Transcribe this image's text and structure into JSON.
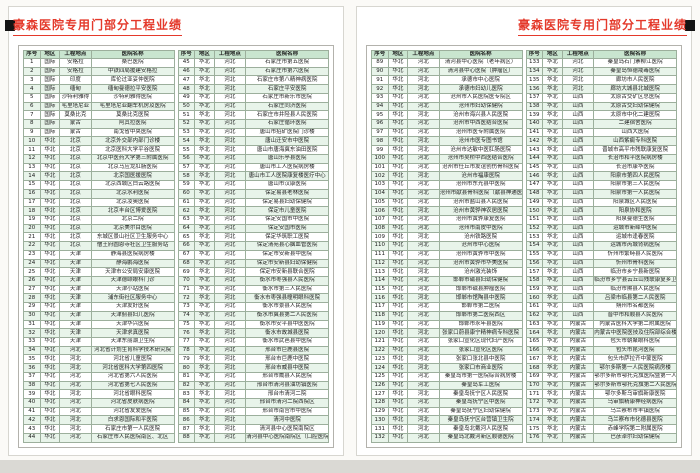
{
  "title": "豪森医院专用门部分工程业绩",
  "accent_color": "#e4392b",
  "header_bg_color": "#c9e5cf",
  "zebra_bg_color": "#e8f4ea",
  "table": {
    "headers": [
      "序号",
      "地区",
      "工程地点",
      "医院名称"
    ],
    "columns": [
      "no",
      "region",
      "location",
      "hospital"
    ],
    "rows": [
      [
        "国际",
        "安格拉",
        "桑巴医院"
      ],
      [
        "国际",
        "安格拉",
        "中铁四局援建安格拉"
      ],
      [
        "国际",
        "印度",
        "库伦过亚妥仲医院"
      ],
      [
        "国际",
        "缅甸",
        "缅甸曼德拉平安医院"
      ],
      [
        "国际",
        "沙特利雅得",
        "沙特利雅得医院"
      ],
      [
        "国际",
        "毛里塔尼亚",
        "毛里塔尼亚翻车机房及医院"
      ],
      [
        "国际",
        "莫桑比克",
        "莫桑比克医院"
      ],
      [
        "国际",
        "蒙古",
        "阿其拉医院"
      ],
      [
        "国际",
        "蒙古",
        "南戈省中央医院"
      ],
      [
        "华北",
        "北京",
        "北京外交部内部门诊楼"
      ],
      [
        "华北",
        "北京",
        "北京医科大学平谷医院"
      ],
      [
        "华北",
        "北京",
        "北京中医药大学第三附属医院"
      ],
      [
        "华北",
        "北京",
        "北京马应龙肛肠医院"
      ],
      [
        "华北",
        "北京",
        "北京国医援医院"
      ],
      [
        "华北",
        "北京",
        "北京西城区白云路医院"
      ],
      [
        "华北",
        "北京",
        "北京水利医院"
      ],
      [
        "华北",
        "北京",
        "北京凌奥医院"
      ],
      [
        "华北",
        "北京",
        "北京丰台区博爱医院"
      ],
      [
        "华北",
        "北京",
        "北京二院"
      ],
      [
        "华北",
        "北京",
        "北京美尔目医院"
      ],
      [
        "华北",
        "北京",
        "东城区景山社区卫生服务中心"
      ],
      [
        "华北",
        "北京",
        "僧王府圆恩寺社区卫生服务站"
      ],
      [
        "华北",
        "天津",
        "静海县医院病房楼"
      ],
      [
        "华北",
        "天津",
        "静海鹏海医院"
      ],
      [
        "华北",
        "天津",
        "天津市公安局安康医院"
      ],
      [
        "华北",
        "天津",
        "天津德颐眼科门诊"
      ],
      [
        "华北",
        "天津",
        "天津小站医院"
      ],
      [
        "华北",
        "天津",
        "浦东街社区服务中心"
      ],
      [
        "华北",
        "天津",
        "天津友好医院"
      ],
      [
        "华北",
        "天津",
        "天津蓟县妇儿医院"
      ],
      [
        "华北",
        "天津",
        "天津华兴医院"
      ],
      [
        "华北",
        "天津",
        "天津求真医院"
      ],
      [
        "华北",
        "天津",
        "天津东丽湖卫生院"
      ],
      [
        "华北",
        "河北",
        "河北省计划生育科学技术研究院"
      ],
      [
        "华北",
        "河北",
        "河北省儿童医院"
      ],
      [
        "华北",
        "河北",
        "河北省医科大学第四医院"
      ],
      [
        "华北",
        "河北",
        "河北省第六人民医院"
      ],
      [
        "华北",
        "河北",
        "河北省第七人民医院"
      ],
      [
        "华北",
        "河北",
        "河北省眼科医院"
      ],
      [
        "华北",
        "河北",
        "河北省皮肤病医院"
      ],
      [
        "华北",
        "河北",
        "河北省友爱医院"
      ],
      [
        "华北",
        "河北",
        "白求恩国际和平医院"
      ],
      [
        "华北",
        "河北",
        "石家庄市第一人民医院"
      ],
      [
        "华北",
        "河北",
        "石家庄市人民医院南区、北区"
      ],
      [
        "华北",
        "河北",
        "石家庄市第五医院"
      ],
      [
        "华北",
        "河北",
        "石家庄市第六医院"
      ],
      [
        "华北",
        "河北",
        "石家庄市第八精神病医院"
      ],
      [
        "华北",
        "河北",
        "石家庄平安医院"
      ],
      [
        "华北",
        "河北",
        "石家庄市新乐市医院"
      ],
      [
        "华北",
        "河北",
        "石家庄同济医院"
      ],
      [
        "华北",
        "河北",
        "石家庄市井陉县人民医院"
      ],
      [
        "华北",
        "河北",
        "石家庄循环医院"
      ],
      [
        "华北",
        "河北",
        "唐山市招矿医院门诊楼"
      ],
      [
        "华北",
        "河北",
        "唐山迁安市中医院"
      ],
      [
        "华北",
        "河北",
        "唐山市唐海冀东油田医院"
      ],
      [
        "华北",
        "河北",
        "唐山乐亭县医院"
      ],
      [
        "华北",
        "河北",
        "唐山市工人医院病房楼"
      ],
      [
        "华北",
        "河北",
        "唐山市工人医院康复楼医疗中心"
      ],
      [
        "华北",
        "河北",
        "唐山市汉康医院"
      ],
      [
        "华北",
        "河北",
        "保定易县老林医院"
      ],
      [
        "华北",
        "河北",
        "保定易县妇幼保健院"
      ],
      [
        "华北",
        "河北",
        "保定市儿童医院"
      ],
      [
        "华北",
        "河北",
        "保定安国市中医院"
      ],
      [
        "华北",
        "河北",
        "保定安国市医院"
      ],
      [
        "华北",
        "河北",
        "保定华筑职工医院"
      ],
      [
        "华北",
        "河北",
        "保定清苑县心脑血管医院"
      ],
      [
        "华北",
        "河北",
        "保定市安新县中医院"
      ],
      [
        "华北",
        "河北",
        "保定市安新县妇幼保健院"
      ],
      [
        "华北",
        "河北",
        "保定市安新县联合医院"
      ],
      [
        "华北",
        "河北",
        "衡水市枣强县人民医院"
      ],
      [
        "华北",
        "河北",
        "衡水市第三人民医院"
      ],
      [
        "华北",
        "河北",
        "衡水市枣强县瞳明眼科医院"
      ],
      [
        "华北",
        "河北",
        "衡水市景县人民医院"
      ],
      [
        "华北",
        "河北",
        "衡水市冀县第二人民医院"
      ],
      [
        "华北",
        "河北",
        "衡水市安平县中医医院"
      ],
      [
        "华北",
        "河北",
        "衡水市故城县医院"
      ],
      [
        "华北",
        "河北",
        "衡水市武邑县中医院"
      ],
      [
        "华北",
        "河北",
        "邢台市巨鹿县医院"
      ],
      [
        "华北",
        "河北",
        "邢台市巨鹿中医院"
      ],
      [
        "华北",
        "河北",
        "邢台市威县中医院"
      ],
      [
        "华北",
        "河北",
        "邢台市威县人民医院"
      ],
      [
        "华北",
        "河北",
        "邢台市清河县油坊镇医院"
      ],
      [
        "华北",
        "河北",
        "邢台市清河二院"
      ],
      [
        "华北",
        "河北",
        "邢台市清河二院西院区"
      ],
      [
        "华北",
        "河北",
        "邢台市南宫市中医院"
      ],
      [
        "华北",
        "河北",
        "清河中医院"
      ],
      [
        "华北",
        "河北",
        "清河县中心医院南院区"
      ],
      [
        "华北",
        "河北",
        "清河县中心医院南院区（口腔医院）"
      ],
      [
        "华北",
        "河北",
        "清河县中心医院（老年病区）"
      ],
      [
        "华北",
        "河北",
        "清河县中心医院（肿瘤区）"
      ],
      [
        "华北",
        "河北",
        "承德市中心医院"
      ],
      [
        "华北",
        "河北",
        "承德市妇幼儿医院"
      ],
      [
        "华北",
        "河北",
        "沧州市人民医院医专院区"
      ],
      [
        "华北",
        "河北",
        "沧州市妇幼保健院"
      ],
      [
        "华北",
        "河北",
        "沧州市海兴县人民医院"
      ],
      [
        "华北",
        "河北",
        "沧州市中西医结合医院"
      ],
      [
        "华北",
        "河北",
        "沧州市医专附属医院"
      ],
      [
        "华北",
        "河北",
        "沧州市医专图书馆"
      ],
      [
        "华北",
        "河北",
        "沧州市达敏中医肛肠医院"
      ],
      [
        "华北",
        "河北",
        "沧州市吴桥中西医结合医院"
      ],
      [
        "华北",
        "河北",
        "沧州市任丘市友谊创伤骨科医院"
      ],
      [
        "华北",
        "河北",
        "沧州市福康医院"
      ],
      [
        "华北",
        "河北",
        "沧州市东光县中医院"
      ],
      [
        "华北",
        "河北",
        "沧州市献县骨科医院（献县神通医院）"
      ],
      [
        "华北",
        "河北",
        "沧州市盐山县人民医院"
      ],
      [
        "华北",
        "河北",
        "沧州市黄骅神农居医院"
      ],
      [
        "华北",
        "河北",
        "沧州市黄骅康复医院"
      ],
      [
        "华北",
        "河北",
        "沧州市南皮中医院"
      ],
      [
        "华北",
        "河北",
        "沧州铁路医院"
      ],
      [
        "华北",
        "河北",
        "沧州市中心医院"
      ],
      [
        "华北",
        "河北",
        "沧州市黄骅市中医院"
      ],
      [
        "华北",
        "河北",
        "沧州市黄骅市华美医院"
      ],
      [
        "华北",
        "河北",
        "沧州激光装饰"
      ],
      [
        "华北",
        "河北",
        "邯郸市磁县妇幼保健院"
      ],
      [
        "华北",
        "河北",
        "邯郸市磁县肿瘤医院"
      ],
      [
        "华北",
        "河北",
        "邯郸市馆陶县中医院"
      ],
      [
        "华北",
        "河北",
        "邯郸市第二医院"
      ],
      [
        "华北",
        "河北",
        "邯郸市第二医院西区"
      ],
      [
        "华北",
        "河北",
        "邯郸市永年县医院"
      ],
      [
        "华北",
        "河北",
        "张家口蔚县康宁精神病专科医院"
      ],
      [
        "华北",
        "河北",
        "张家口宣化区现代妇产医院"
      ],
      [
        "华北",
        "河北",
        "张家口宣化区医院"
      ],
      [
        "华北",
        "河北",
        "张家口张北县中医院"
      ],
      [
        "华北",
        "河北",
        "张家口市商业医院"
      ],
      [
        "华北",
        "河北",
        "秦皇岛市第一医院综合病房楼"
      ],
      [
        "华北",
        "河北",
        "秦皇岛军工医院"
      ],
      [
        "华北",
        "河北",
        "秦皇岛抚宁区人民医院"
      ],
      [
        "华北",
        "河北",
        "秦皇岛抚宁区中医院"
      ],
      [
        "华北",
        "河北",
        "秦皇岛抚宁区妇幼保健院"
      ],
      [
        "华北",
        "河北",
        "秦皇岛抚宁区台营镇卫生院"
      ],
      [
        "华北",
        "河北",
        "秦皇岛北戴河人民医院"
      ],
      [
        "华北",
        "河北",
        "秦皇岛北戴河新区顺德医院"
      ],
      [
        "华北",
        "河北",
        "秦皇岛石门寨柳江医院"
      ],
      [
        "华北",
        "河北",
        "秦皇岛恒德戒毒医院"
      ],
      [
        "华北",
        "河北",
        "廊坊市人民医院"
      ],
      [
        "华北",
        "河北",
        "廊坊大城县北城医院"
      ],
      [
        "华北",
        "山西",
        "太原古交矿区总医院"
      ],
      [
        "华北",
        "山西",
        "太原古交妇幼保健院"
      ],
      [
        "华北",
        "山西",
        "太原市中化二建医院"
      ],
      [
        "华北",
        "山西",
        "二建宿舍医院"
      ],
      [
        "华北",
        "山西",
        "山西大医院"
      ],
      [
        "华北",
        "山西",
        "山西紫癜专科医院"
      ],
      [
        "华北",
        "山西",
        "晋城市高平市残联康复医院"
      ],
      [
        "华北",
        "山西",
        "长治市和平医院病房楼"
      ],
      [
        "华北",
        "山西",
        "长治市康华医院"
      ],
      [
        "华北",
        "山西",
        "阳泉市第四人民医院"
      ],
      [
        "华北",
        "山西",
        "阳泉市第三人民医院"
      ],
      [
        "华北",
        "山西",
        "阳泉市第一人民医院"
      ],
      [
        "华北",
        "山西",
        "阳泉城区人民医院"
      ],
      [
        "华北",
        "山西",
        "阳泉协和医院"
      ],
      [
        "华北",
        "山西",
        "阳泉曼德生医院"
      ],
      [
        "华北",
        "山西",
        "运城市新绛中医院"
      ],
      [
        "华北",
        "山西",
        "运城市逢春医院"
      ],
      [
        "华北",
        "山西",
        "运城市芮城肾病医院"
      ],
      [
        "华北",
        "山西",
        "忻州市繁峙县人民医院"
      ],
      [
        "华北",
        "山西",
        "忻州市骨科医院"
      ],
      [
        "华北",
        "山西",
        "临汾市乡宁县新医院"
      ],
      [
        "华北",
        "山西",
        "临汾市乡宁县云丘山残联康复乡卫生院"
      ],
      [
        "华北",
        "山西",
        "临汾市隰县人民医院"
      ],
      [
        "华北",
        "山西",
        "吕梁市临县第二人民医院"
      ],
      [
        "华北",
        "山西",
        "朔州市名都医院"
      ],
      [
        "华北",
        "山西",
        "晋中市和顺县人民医院"
      ],
      [
        "华北",
        "内蒙古",
        "内蒙古医科大学第二附属医院"
      ],
      [
        "华北",
        "内蒙古",
        "内蒙古中医院医技及住院部综合楼"
      ],
      [
        "华北",
        "内蒙古",
        "包头市朝聚眼科医院"
      ],
      [
        "华北",
        "内蒙古",
        "包头市昆河医院"
      ],
      [
        "华北",
        "内蒙古",
        "包头市萨拉齐中蒙医院"
      ],
      [
        "华北",
        "内蒙古",
        "鄂尔多斯第一人民医院病房楼"
      ],
      [
        "华北",
        "内蒙古",
        "鄂尔多斯市鄂托克旗医院暨第一人民医院病房楼"
      ],
      [
        "华北",
        "内蒙古",
        "鄂尔多斯市鄂托克旗第二人民医院病房楼"
      ],
      [
        "华北",
        "内蒙古",
        "鄂尔多斯乌审旗新康医院"
      ],
      [
        "华北",
        "内蒙古",
        "乌审旗精康神经病医院"
      ],
      [
        "华北",
        "内蒙古",
        "乌兰察布市丰镇医院"
      ],
      [
        "华北",
        "内蒙古",
        "乌兰察布市化德县医院"
      ],
      [
        "华北",
        "内蒙古",
        "赤峰学院第二附属医院"
      ],
      [
        "华北",
        "内蒙古",
        "巴彦淖尔妇幼保健院"
      ]
    ]
  }
}
